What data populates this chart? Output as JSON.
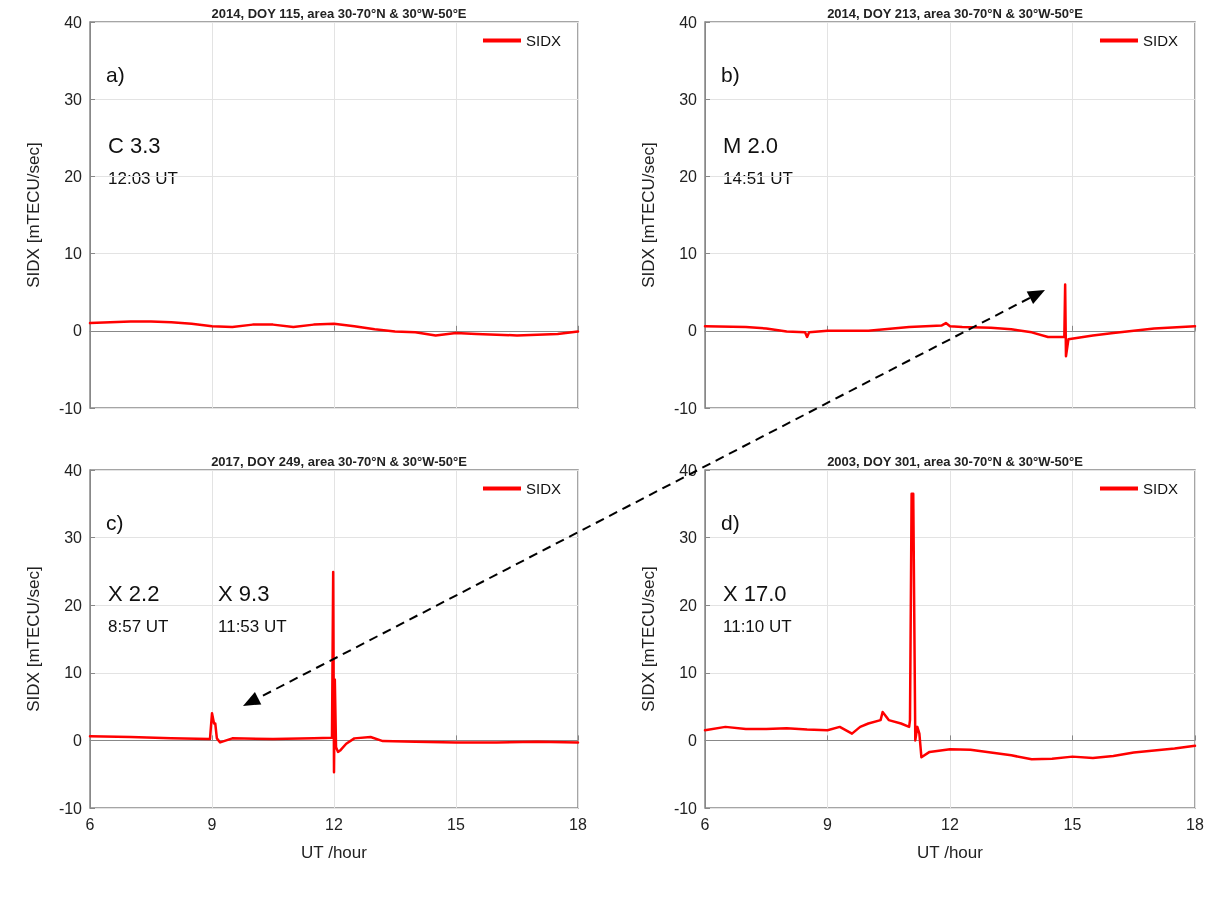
{
  "chart_data": [
    {
      "type": "line",
      "title": "2014, DOY 115, area 30-70°N & 30°W-50°E",
      "ylabel": "SIDX [mTECU/sec]",
      "annotations": [
        "a)",
        "C 3.3",
        "12:03 UT"
      ],
      "xlim": [
        6,
        18
      ],
      "xticks": [
        6,
        9,
        12,
        15,
        18
      ],
      "ylim": [
        -10,
        40
      ],
      "yticks": [
        -10,
        0,
        10,
        20,
        30,
        40
      ],
      "tick_labels": "y",
      "grid": true,
      "legend": "top right",
      "marker": "none",
      "line_style": "solid",
      "series": [
        {
          "name": "SIDX",
          "color": "#ff0000",
          "x": [
            6,
            6.5,
            7,
            7.5,
            8,
            8.5,
            9,
            9.5,
            10,
            10.5,
            11,
            11.5,
            12,
            12.5,
            13,
            13.5,
            14,
            14.5,
            15,
            15.5,
            16,
            16.5,
            17,
            17.5,
            18
          ],
          "values": [
            1.0,
            1.1,
            1.2,
            1.2,
            1.1,
            0.9,
            0.6,
            0.5,
            0.8,
            0.8,
            0.5,
            0.8,
            0.9,
            0.6,
            0.2,
            -0.1,
            -0.2,
            -0.6,
            -0.3,
            -0.4,
            -0.5,
            -0.6,
            -0.5,
            -0.4,
            -0.1
          ]
        }
      ]
    },
    {
      "type": "line",
      "title": "2014, DOY 213, area 30-70°N & 30°W-50°E",
      "ylabel": "SIDX [mTECU/sec]",
      "annotations": [
        "b)",
        "M 2.0",
        "14:51 UT"
      ],
      "xlim": [
        6,
        18
      ],
      "xticks": [
        6,
        9,
        12,
        15,
        18
      ],
      "ylim": [
        -10,
        40
      ],
      "yticks": [
        -10,
        0,
        10,
        20,
        30,
        40
      ],
      "tick_labels": "y",
      "grid": true,
      "legend": "top right",
      "marker": "none",
      "line_style": "solid",
      "series": [
        {
          "name": "SIDX",
          "color": "#ff0000",
          "x": [
            6,
            7,
            7.5,
            8,
            8.45,
            8.5,
            8.55,
            9,
            10,
            11,
            11.8,
            11.9,
            12,
            12.3,
            13,
            13.5,
            14,
            14.4,
            14.8,
            14.82,
            14.84,
            14.9,
            15.5,
            16,
            17,
            18
          ],
          "values": [
            0.6,
            0.5,
            0.3,
            -0.1,
            -0.2,
            -0.8,
            -0.2,
            0.0,
            0.0,
            0.5,
            0.7,
            1.0,
            0.6,
            0.5,
            0.4,
            0.2,
            -0.2,
            -0.8,
            -0.8,
            6.0,
            -3.3,
            -1.1,
            -0.6,
            -0.3,
            0.3,
            0.6
          ]
        }
      ]
    },
    {
      "type": "line",
      "title": "2017, DOY 249, area 30-70°N & 30°W-50°E",
      "xlabel": "UT /hour",
      "ylabel": "SIDX [mTECU/sec]",
      "annotations": [
        "c)",
        "X 2.2",
        "8:57 UT",
        "X 9.3",
        "11:53 UT"
      ],
      "xlim": [
        6,
        18
      ],
      "xticks": [
        6,
        9,
        12,
        15,
        18
      ],
      "ylim": [
        -10,
        40
      ],
      "yticks": [
        -10,
        0,
        10,
        20,
        30,
        40
      ],
      "grid": true,
      "legend": "top right",
      "marker": "none",
      "line_style": "solid",
      "series": [
        {
          "name": "SIDX",
          "color": "#ff0000",
          "x": [
            6,
            7,
            8,
            8.95,
            9.0,
            9.05,
            9.08,
            9.12,
            9.2,
            9.5,
            10.5,
            11.5,
            11.95,
            11.98,
            12.0,
            12.02,
            12.05,
            12.1,
            12.15,
            12.3,
            12.5,
            12.9,
            13.2,
            14,
            15,
            16,
            17,
            18
          ],
          "values": [
            0.6,
            0.5,
            0.3,
            0.2,
            4.0,
            2.5,
            2.5,
            0.3,
            -0.3,
            0.3,
            0.2,
            0.3,
            0.4,
            24.9,
            -4.7,
            9.0,
            -1.0,
            -1.7,
            -1.5,
            -0.5,
            0.3,
            0.5,
            -0.1,
            -0.2,
            -0.3,
            -0.3,
            -0.2,
            -0.3
          ]
        }
      ]
    },
    {
      "type": "line",
      "title": "2003, DOY 301, area 30-70°N & 30°W-50°E",
      "xlabel": "UT /hour",
      "ylabel": "SIDX [mTECU/sec]",
      "annotations": [
        "d)",
        "X 17.0",
        "11:10 UT"
      ],
      "xlim": [
        6,
        18
      ],
      "xticks": [
        6,
        9,
        12,
        15,
        18
      ],
      "ylim": [
        -10,
        40
      ],
      "yticks": [
        -10,
        0,
        10,
        20,
        30,
        40
      ],
      "grid": true,
      "legend": "top right",
      "marker": "none",
      "line_style": "solid",
      "series": [
        {
          "name": "SIDX",
          "color": "#ff0000",
          "x": [
            6,
            6.5,
            7,
            7.5,
            8,
            8.5,
            9,
            9.3,
            9.6,
            9.8,
            10,
            10.3,
            10.35,
            10.5,
            10.8,
            11.0,
            11.02,
            11.06,
            11.1,
            11.15,
            11.2,
            11.25,
            11.3,
            11.5,
            12,
            12.5,
            13,
            13.5,
            14,
            14.5,
            15,
            15.5,
            16,
            16.5,
            17,
            17.5,
            18
          ],
          "values": [
            1.5,
            2.0,
            1.7,
            1.7,
            1.8,
            1.6,
            1.5,
            2.0,
            1.0,
            2.0,
            2.5,
            3.0,
            4.2,
            3.0,
            2.5,
            2.0,
            3.0,
            36.5,
            36.5,
            0.0,
            2.0,
            1.0,
            -2.5,
            -1.7,
            -1.3,
            -1.4,
            -1.8,
            -2.2,
            -2.8,
            -2.7,
            -2.4,
            -2.6,
            -2.3,
            -1.8,
            -1.5,
            -1.2,
            -0.8
          ]
        }
      ]
    }
  ]
}
